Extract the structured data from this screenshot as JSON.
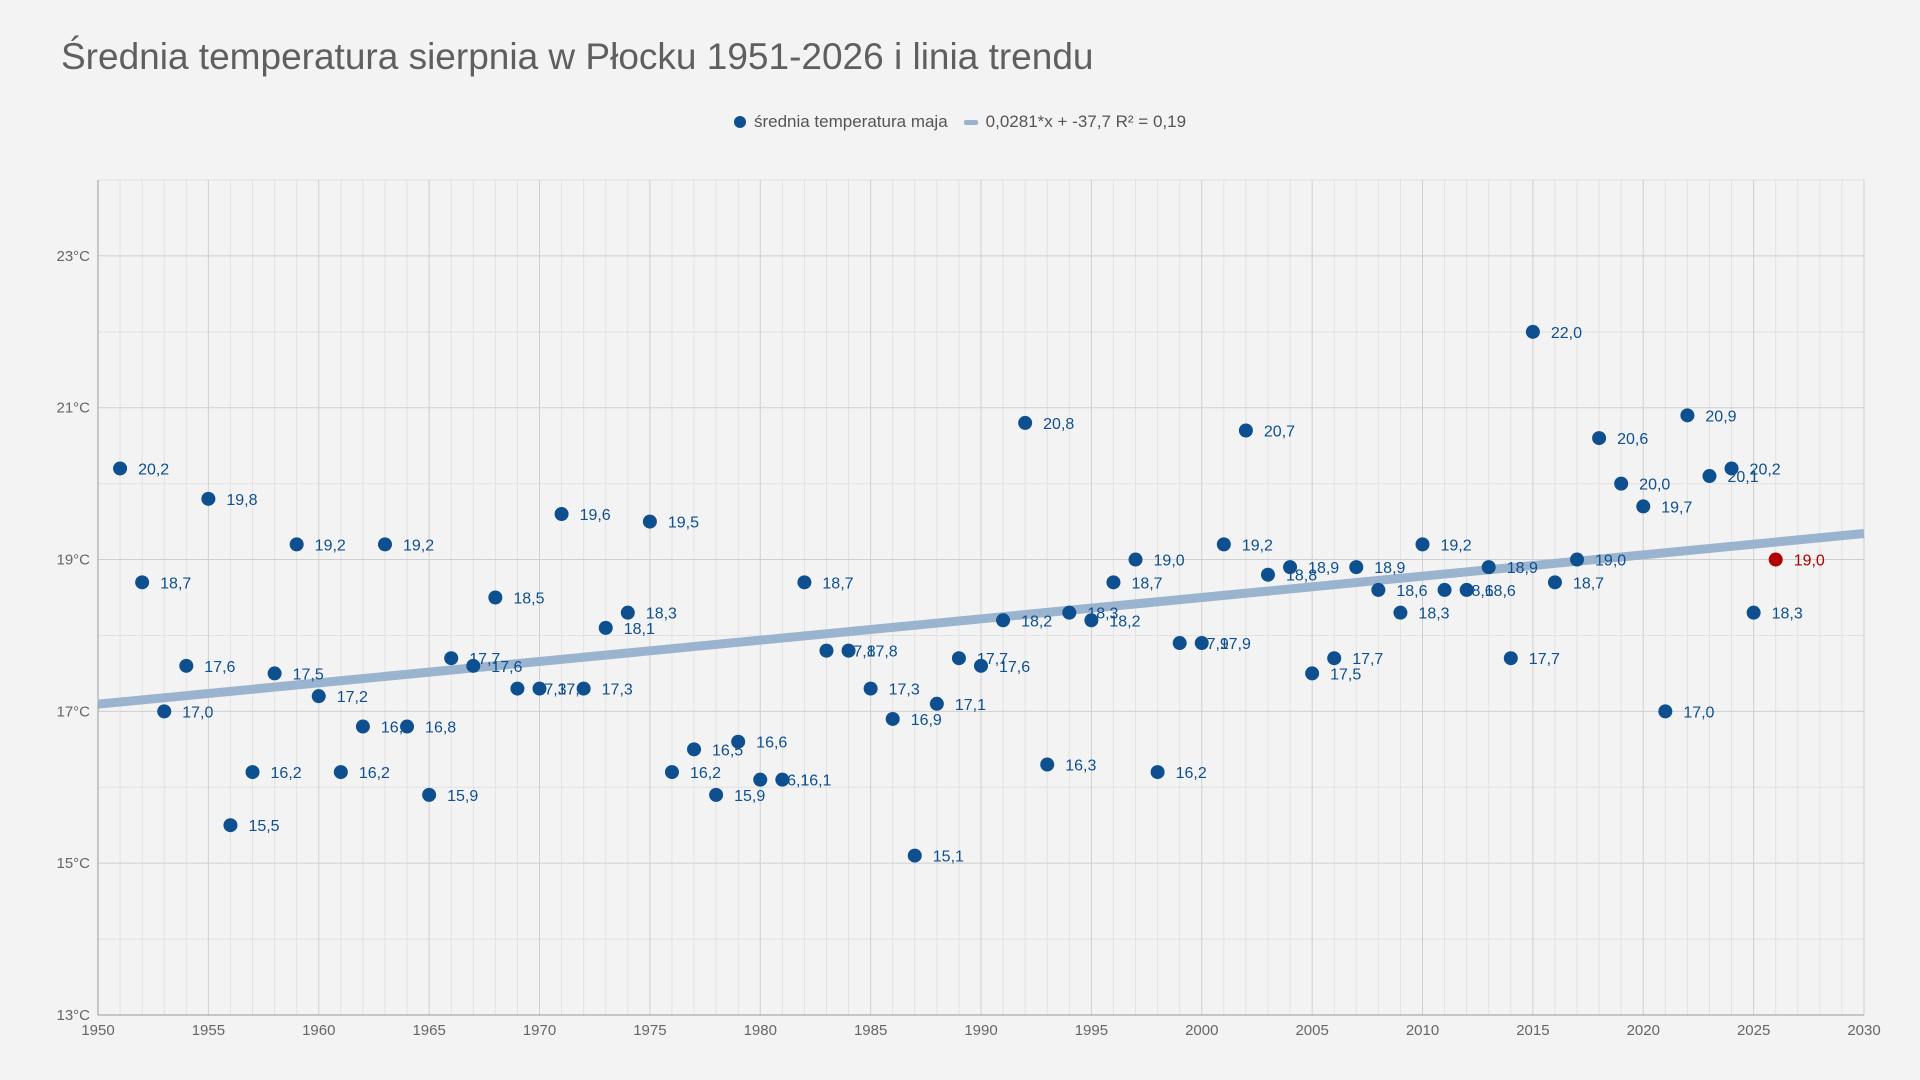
{
  "chart_data": {
    "type": "scatter",
    "title": "Średnia temperatura sierpnia w Płocku 1951-2026 i linia trendu",
    "xlabel": "",
    "ylabel": "",
    "xlim": [
      1950,
      2030
    ],
    "ylim": [
      13,
      24
    ],
    "x_ticks": [
      1950,
      1955,
      1960,
      1965,
      1970,
      1975,
      1980,
      1985,
      1990,
      1995,
      2000,
      2005,
      2010,
      2015,
      2020,
      2025,
      2030
    ],
    "y_ticks": [
      "13°C",
      "15°C",
      "17°C",
      "19°C",
      "21°C",
      "23°C"
    ],
    "y_tick_values": [
      13,
      15,
      17,
      19,
      21,
      23
    ],
    "grid": true,
    "legend_position": "top-center",
    "series": [
      {
        "name": "średnia temperatura maja",
        "color": "#0d4f8f",
        "highlight_color": "#b00000",
        "highlight_year": 2026,
        "points": [
          [
            1951,
            20.2,
            "20,2"
          ],
          [
            1952,
            18.7,
            "18,7"
          ],
          [
            1953,
            17.0,
            "17,0"
          ],
          [
            1954,
            17.6,
            "17,6"
          ],
          [
            1955,
            19.8,
            "19,8"
          ],
          [
            1956,
            15.5,
            "15,5"
          ],
          [
            1957,
            16.2,
            "16,2"
          ],
          [
            1958,
            17.5,
            "17,5"
          ],
          [
            1959,
            19.2,
            "19,2"
          ],
          [
            1960,
            17.2,
            "17,2"
          ],
          [
            1961,
            16.2,
            "16,2"
          ],
          [
            1962,
            16.8,
            "16,8"
          ],
          [
            1963,
            19.2,
            "19,2"
          ],
          [
            1964,
            16.8,
            "16,8"
          ],
          [
            1965,
            15.9,
            "15,9"
          ],
          [
            1966,
            17.7,
            "17,7"
          ],
          [
            1967,
            17.6,
            "17,6"
          ],
          [
            1968,
            18.5,
            "18,5"
          ],
          [
            1969,
            17.3,
            "17,3"
          ],
          [
            1970,
            17.3,
            "17,3"
          ],
          [
            1971,
            19.6,
            "19,6"
          ],
          [
            1972,
            17.3,
            "17,3"
          ],
          [
            1973,
            18.1,
            "18,1"
          ],
          [
            1974,
            18.3,
            "18,3"
          ],
          [
            1975,
            19.5,
            "19,5"
          ],
          [
            1976,
            16.2,
            "16,2"
          ],
          [
            1977,
            16.5,
            "16,5"
          ],
          [
            1978,
            15.9,
            "15,9"
          ],
          [
            1979,
            16.6,
            "16,6"
          ],
          [
            1980,
            16.1,
            "16,1"
          ],
          [
            1981,
            16.1,
            "16,1"
          ],
          [
            1982,
            18.7,
            "18,7"
          ],
          [
            1983,
            17.8,
            "17,8"
          ],
          [
            1984,
            17.8,
            "17,8"
          ],
          [
            1985,
            17.3,
            "17,3"
          ],
          [
            1986,
            16.9,
            "16,9"
          ],
          [
            1987,
            15.1,
            "15,1"
          ],
          [
            1988,
            17.1,
            "17,1"
          ],
          [
            1989,
            17.7,
            "17,7"
          ],
          [
            1990,
            17.6,
            "17,6"
          ],
          [
            1991,
            18.2,
            "18,2"
          ],
          [
            1992,
            20.8,
            "20,8"
          ],
          [
            1993,
            16.3,
            "16,3"
          ],
          [
            1994,
            18.3,
            "18,3"
          ],
          [
            1995,
            18.2,
            "18,2"
          ],
          [
            1996,
            18.7,
            "18,7"
          ],
          [
            1997,
            19.0,
            "19,0"
          ],
          [
            1998,
            16.2,
            "16,2"
          ],
          [
            1999,
            17.9,
            "17,9"
          ],
          [
            2000,
            17.9,
            "17,9"
          ],
          [
            2001,
            19.2,
            "19,2"
          ],
          [
            2002,
            20.7,
            "20,7"
          ],
          [
            2003,
            18.8,
            "18,8"
          ],
          [
            2004,
            18.9,
            "18,9"
          ],
          [
            2005,
            17.5,
            "17,5"
          ],
          [
            2006,
            17.7,
            "17,7"
          ],
          [
            2007,
            18.9,
            "18,9"
          ],
          [
            2008,
            18.6,
            "18,6"
          ],
          [
            2009,
            18.3,
            "18,3"
          ],
          [
            2010,
            19.2,
            "19,2"
          ],
          [
            2011,
            18.6,
            "18,6"
          ],
          [
            2012,
            18.6,
            "18,6"
          ],
          [
            2013,
            18.9,
            "18,9"
          ],
          [
            2014,
            17.7,
            "17,7"
          ],
          [
            2015,
            22.0,
            "22,0"
          ],
          [
            2016,
            18.7,
            "18,7"
          ],
          [
            2017,
            19.0,
            "19,0"
          ],
          [
            2018,
            20.6,
            "20,6"
          ],
          [
            2019,
            20.0,
            "20,0"
          ],
          [
            2020,
            19.7,
            "19,7"
          ],
          [
            2021,
            17.0,
            "17,0"
          ],
          [
            2022,
            20.9,
            "20,9"
          ],
          [
            2023,
            20.1,
            "20,1"
          ],
          [
            2024,
            20.2,
            "20,2"
          ],
          [
            2025,
            18.3,
            "18,3"
          ],
          [
            2026,
            19.0,
            "19,0"
          ]
        ]
      },
      {
        "name": "0,0281*x + -37,7 R² = 0,19",
        "type": "trendline",
        "color": "#9ab3cf",
        "slope": 0.0281,
        "intercept": -37.7,
        "r_squared": 0.19
      }
    ]
  }
}
